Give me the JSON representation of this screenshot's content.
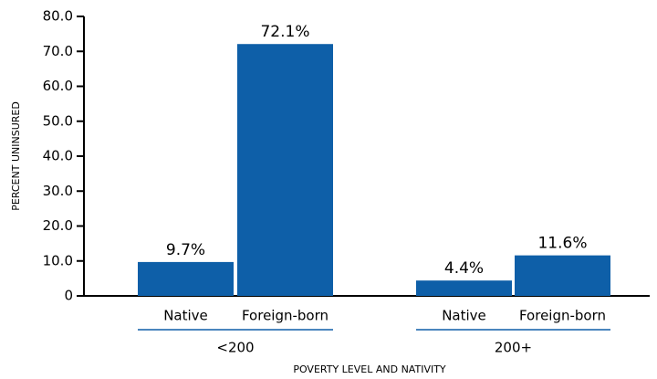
{
  "chart_data": {
    "type": "bar",
    "categories": [
      "Native",
      "Foreign-born",
      "Native",
      "Foreign-born"
    ],
    "groups": [
      "<200",
      "200+"
    ],
    "values": [
      9.7,
      72.1,
      4.4,
      11.6
    ],
    "value_labels": [
      "9.7%",
      "72.1%",
      "4.4%",
      "11.6%"
    ],
    "color": "#0e5fa8",
    "ylabel": "PERCENT UNINSURED",
    "xlabel": "POVERTY LEVEL AND NATIVITY",
    "ylim": [
      0,
      80
    ],
    "yticks": [
      0,
      {
        "value": 10,
        "label": "10.0"
      },
      {
        "value": 20,
        "label": "20.0"
      },
      {
        "value": 30,
        "label": "30.0"
      },
      {
        "value": 40,
        "label": "40.0"
      },
      {
        "value": 50,
        "label": "50.0"
      },
      {
        "value": 60,
        "label": "60.0"
      },
      {
        "value": 70,
        "label": "70.0"
      },
      {
        "value": 80,
        "label": "80.0"
      }
    ],
    "grid": false
  }
}
